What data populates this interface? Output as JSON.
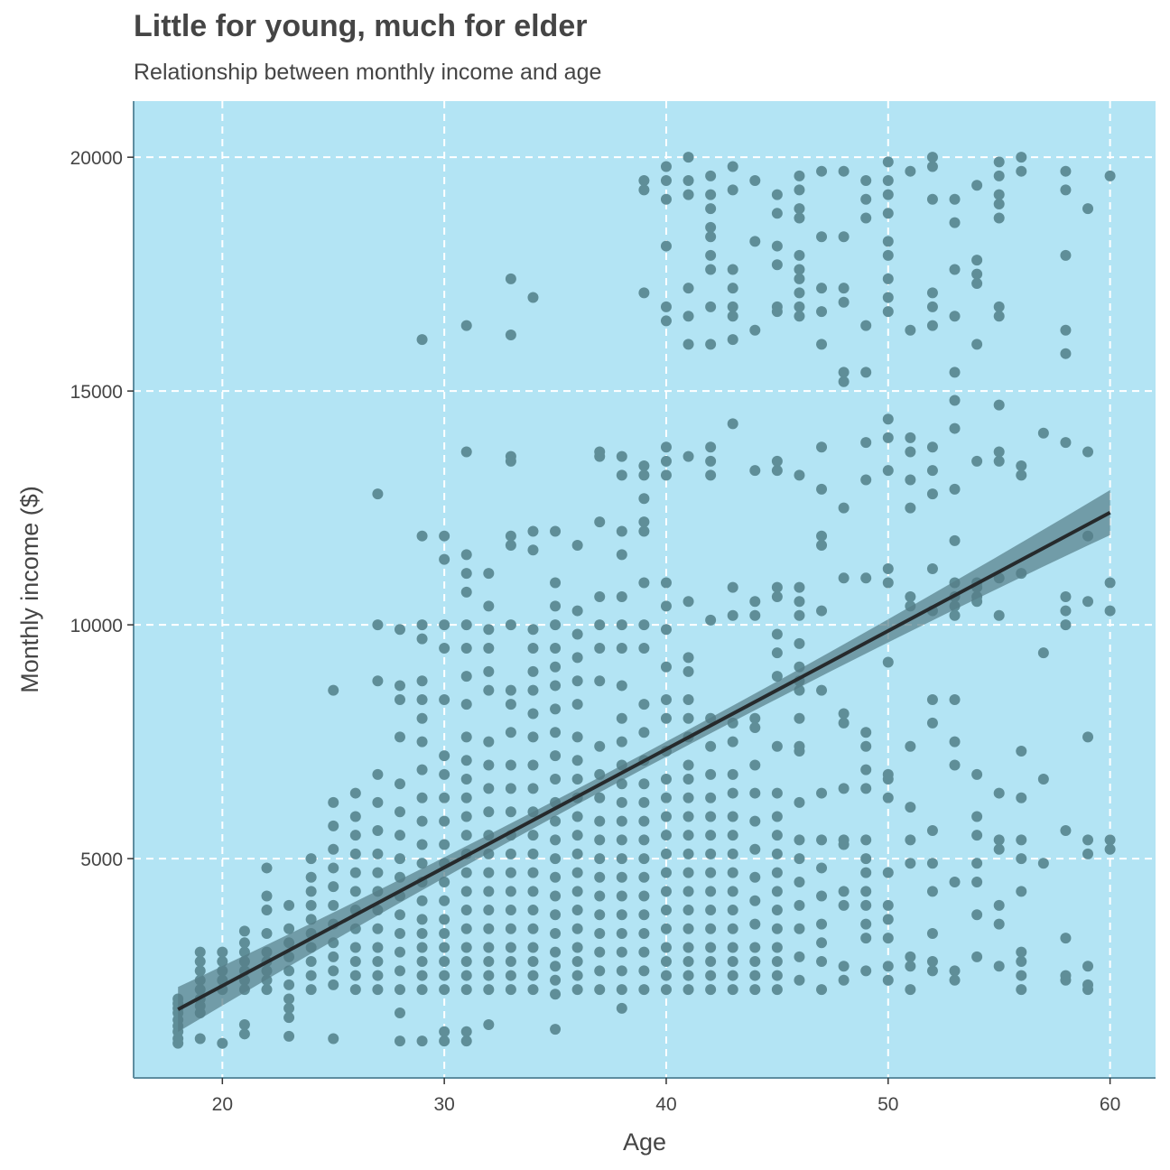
{
  "chart_data": {
    "type": "scatter",
    "title": "Little for young, much for elder",
    "subtitle": "Relationship between monthly income and age",
    "xlabel": "Age",
    "ylabel": "Monthly income ($)",
    "xlim": [
      16,
      62
    ],
    "ylim": [
      0,
      21000
    ],
    "x_ticks": [
      20,
      30,
      40,
      50,
      60
    ],
    "y_ticks": [
      5000,
      10000,
      15000,
      20000
    ],
    "grid": true,
    "colors": {
      "panel": "#b3e4f4",
      "points": "#5f8e98",
      "line": "#262a2c",
      "ribbon": "#557d88",
      "grid": "#ffffff",
      "axis": "#5e8da0"
    },
    "trend": {
      "intercept": -2780,
      "slope": 253,
      "x_range": [
        18,
        60
      ],
      "ci_halfwidth_ends": 480,
      "ci_halfwidth_mid": 160
    },
    "point_groups": [
      {
        "x": 18,
        "y": [
          1050,
          1150,
          1300,
          1420,
          1550,
          1700,
          1800,
          1900,
          2000
        ]
      },
      {
        "x": 19,
        "y": [
          1150,
          1700,
          1850,
          2000,
          2200,
          2400,
          2600,
          2800,
          3000
        ]
      },
      {
        "x": 20,
        "y": [
          1050,
          2200,
          2400,
          2600,
          2800,
          3000
        ]
      },
      {
        "x": 21,
        "y": [
          1250,
          1450,
          2200,
          2400,
          2600,
          2800,
          3000,
          3200,
          3450
        ]
      },
      {
        "x": 22,
        "y": [
          2200,
          2400,
          2600,
          2800,
          3000,
          3400,
          3900,
          4200,
          4800
        ]
      },
      {
        "x": 23,
        "y": [
          1200,
          1600,
          1800,
          2000,
          2300,
          2600,
          2900,
          3200,
          3500,
          4000
        ]
      },
      {
        "x": 24,
        "y": [
          2200,
          2500,
          2800,
          3100,
          3400,
          3700,
          4000,
          4300,
          4600,
          5000
        ]
      },
      {
        "x": 25,
        "y": [
          1150,
          2300,
          2600,
          2900,
          3200,
          3600,
          4000,
          4400,
          4800,
          5200,
          5700,
          6200,
          8600
        ]
      },
      {
        "x": 26,
        "y": [
          2200,
          2500,
          2800,
          3100,
          3500,
          3900,
          4300,
          4700,
          5100,
          5500,
          5900,
          6400
        ]
      },
      {
        "x": 27,
        "y": [
          2200,
          2500,
          2800,
          3100,
          3500,
          3900,
          4300,
          4700,
          5100,
          5600,
          6200,
          6800,
          8800,
          10000,
          12800
        ]
      },
      {
        "x": 28,
        "y": [
          1100,
          1700,
          2200,
          2600,
          3000,
          3400,
          3800,
          4200,
          4600,
          5000,
          5500,
          6000,
          6600,
          7600,
          8400,
          8700,
          9900
        ]
      },
      {
        "x": 29,
        "y": [
          1100,
          2200,
          2500,
          2800,
          3100,
          3400,
          3700,
          4100,
          4500,
          4900,
          5300,
          5800,
          6300,
          6900,
          7500,
          8000,
          8400,
          8800,
          9700,
          10000,
          11900,
          16100
        ]
      },
      {
        "x": 30,
        "y": [
          1100,
          1300,
          2200,
          2500,
          2800,
          3100,
          3400,
          3700,
          4100,
          4500,
          4900,
          5300,
          5800,
          6300,
          6800,
          7200,
          8400,
          9500,
          10000,
          11400,
          11900
        ]
      },
      {
        "x": 31,
        "y": [
          1100,
          1300,
          2200,
          2500,
          2800,
          3100,
          3500,
          3900,
          4300,
          4700,
          5100,
          5500,
          5900,
          6300,
          6700,
          7100,
          7600,
          8300,
          8900,
          9500,
          10000,
          10700,
          11100,
          11500,
          13700,
          16400
        ]
      },
      {
        "x": 32,
        "y": [
          1450,
          2200,
          2500,
          2800,
          3100,
          3500,
          3900,
          4300,
          4700,
          5100,
          5500,
          6000,
          6500,
          7000,
          7500,
          8600,
          9000,
          9500,
          9900,
          10400,
          11100
        ]
      },
      {
        "x": 33,
        "y": [
          2200,
          2500,
          2800,
          3100,
          3500,
          3900,
          4300,
          4700,
          5100,
          5500,
          6000,
          6500,
          7000,
          7700,
          8300,
          8600,
          10000,
          11700,
          11900,
          13500,
          13600,
          16200,
          17400
        ]
      },
      {
        "x": 34,
        "y": [
          2200,
          2500,
          2800,
          3100,
          3500,
          3900,
          4300,
          4700,
          5100,
          5500,
          6000,
          6500,
          7000,
          7600,
          8100,
          8600,
          9000,
          9500,
          9900,
          11600,
          12000,
          17000
        ]
      },
      {
        "x": 35,
        "y": [
          1350,
          2100,
          2400,
          2700,
          3000,
          3400,
          3800,
          4200,
          4600,
          5000,
          5400,
          5800,
          6200,
          6700,
          7200,
          7700,
          8200,
          8700,
          9100,
          9500,
          10000,
          10400,
          10900,
          12000
        ]
      },
      {
        "x": 36,
        "y": [
          2200,
          2500,
          2800,
          3100,
          3500,
          3900,
          4300,
          4700,
          5100,
          5500,
          5900,
          6300,
          6700,
          7100,
          7600,
          8300,
          8800,
          9300,
          9800,
          10300,
          11700
        ]
      },
      {
        "x": 37,
        "y": [
          2200,
          2600,
          3000,
          3400,
          3800,
          4200,
          4600,
          5000,
          5400,
          5800,
          6300,
          6800,
          7400,
          8800,
          9500,
          10000,
          10600,
          12200,
          13600,
          13700
        ]
      },
      {
        "x": 38,
        "y": [
          1800,
          2200,
          2600,
          3000,
          3400,
          3800,
          4200,
          4600,
          5000,
          5400,
          5800,
          6200,
          6600,
          7000,
          7500,
          8000,
          8700,
          9500,
          10000,
          10600,
          11500,
          12000,
          13200,
          13600
        ]
      },
      {
        "x": 39,
        "y": [
          2200,
          2600,
          3000,
          3400,
          3800,
          4200,
          4600,
          5000,
          5400,
          5800,
          6200,
          6600,
          7100,
          7700,
          8300,
          9500,
          10000,
          10900,
          12000,
          12200,
          12700,
          13200,
          13400,
          17100,
          19300,
          19500
        ]
      },
      {
        "x": 40,
        "y": [
          2200,
          2500,
          2800,
          3100,
          3500,
          3900,
          4300,
          4700,
          5100,
          5500,
          5900,
          6300,
          6700,
          7300,
          8000,
          8400,
          9100,
          9900,
          10400,
          10900,
          13200,
          13500,
          13800,
          16500,
          16800,
          18100,
          19100,
          19500,
          19800
        ]
      },
      {
        "x": 41,
        "y": [
          2200,
          2500,
          2800,
          3100,
          3500,
          3900,
          4300,
          4700,
          5100,
          5500,
          5900,
          6300,
          6700,
          7000,
          7600,
          8000,
          8400,
          9000,
          9300,
          10500,
          13600,
          16000,
          16600,
          17200,
          19200,
          19500,
          20000
        ]
      },
      {
        "x": 42,
        "y": [
          2200,
          2500,
          2800,
          3100,
          3500,
          3900,
          4300,
          4700,
          5100,
          5500,
          5900,
          6300,
          6800,
          7400,
          8000,
          10100,
          13200,
          13500,
          13800,
          16000,
          16800,
          17600,
          17900,
          18300,
          18500,
          18900,
          19200,
          19600
        ]
      },
      {
        "x": 43,
        "y": [
          2200,
          2500,
          2800,
          3100,
          3500,
          3900,
          4300,
          4700,
          5100,
          5500,
          5900,
          6400,
          6800,
          7500,
          7900,
          10200,
          10800,
          14300,
          16100,
          16600,
          16800,
          17200,
          17600,
          19300,
          19800
        ]
      },
      {
        "x": 44,
        "y": [
          2200,
          2500,
          2800,
          3100,
          3600,
          4100,
          4600,
          5200,
          5800,
          6400,
          7000,
          7800,
          8000,
          10200,
          10500,
          13300,
          16300,
          18200,
          19500
        ]
      },
      {
        "x": 45,
        "y": [
          2200,
          2500,
          2800,
          3100,
          3500,
          3900,
          4300,
          4700,
          5100,
          5500,
          5900,
          6400,
          7400,
          8900,
          9400,
          9800,
          10600,
          10800,
          13300,
          13500,
          16700,
          16800,
          17700,
          18100,
          18800,
          19200
        ]
      },
      {
        "x": 46,
        "y": [
          2400,
          2900,
          3500,
          4000,
          4500,
          5000,
          5400,
          6200,
          7300,
          7400,
          8000,
          8600,
          8800,
          9100,
          9600,
          10200,
          10500,
          10800,
          13200,
          16600,
          16800,
          17100,
          17400,
          17600,
          17900,
          18700,
          18900,
          19300,
          19600
        ]
      },
      {
        "x": 47,
        "y": [
          2200,
          2800,
          3200,
          3600,
          4200,
          4800,
          5400,
          6400,
          8600,
          10300,
          11700,
          11900,
          12900,
          13800,
          16000,
          16700,
          17200,
          18300,
          19700
        ]
      },
      {
        "x": 48,
        "y": [
          2400,
          2700,
          4000,
          4300,
          5300,
          5400,
          6500,
          7900,
          8100,
          11000,
          12500,
          15200,
          15400,
          16900,
          17200,
          18300,
          19700
        ]
      },
      {
        "x": 49,
        "y": [
          2600,
          3300,
          3600,
          4000,
          4300,
          4700,
          5000,
          5400,
          6500,
          6900,
          7400,
          7700,
          11000,
          13100,
          13900,
          15400,
          16400,
          18700,
          19100,
          19500
        ]
      },
      {
        "x": 50,
        "y": [
          2400,
          2700,
          3300,
          3700,
          4000,
          4700,
          6300,
          6700,
          6800,
          9200,
          10900,
          11200,
          13300,
          14000,
          14400,
          16700,
          17000,
          17400,
          17900,
          18200,
          18800,
          19200,
          19500,
          19900
        ]
      },
      {
        "x": 51,
        "y": [
          2200,
          2700,
          2900,
          4900,
          5400,
          6100,
          7400,
          10400,
          10600,
          12500,
          13100,
          13700,
          14000,
          16300,
          19700
        ]
      },
      {
        "x": 52,
        "y": [
          2600,
          2800,
          3400,
          4300,
          4900,
          5600,
          7900,
          8400,
          10300,
          11200,
          12800,
          13300,
          13800,
          16400,
          16800,
          17100,
          19100,
          19800,
          20000
        ]
      },
      {
        "x": 53,
        "y": [
          2400,
          2600,
          4500,
          7000,
          7500,
          8400,
          10200,
          10400,
          10600,
          10900,
          11800,
          12900,
          14200,
          14800,
          15400,
          16600,
          17600,
          18600,
          19100
        ]
      },
      {
        "x": 54,
        "y": [
          2900,
          3800,
          4500,
          4900,
          5500,
          5900,
          6800,
          10500,
          10600,
          10800,
          10900,
          13500,
          16000,
          17300,
          17500,
          17800,
          19400
        ]
      },
      {
        "x": 55,
        "y": [
          2700,
          3600,
          4000,
          5200,
          5400,
          6400,
          10200,
          11000,
          13500,
          13700,
          14700,
          16600,
          16800,
          18700,
          19000,
          19200,
          19600,
          19900
        ]
      },
      {
        "x": 56,
        "y": [
          2200,
          2500,
          2800,
          3000,
          4300,
          5000,
          5400,
          6300,
          7300,
          11100,
          13200,
          13400,
          19700,
          20000
        ]
      },
      {
        "x": 57,
        "y": [
          4900,
          6700,
          9400,
          14100
        ]
      },
      {
        "x": 58,
        "y": [
          2400,
          2500,
          3300,
          5600,
          10000,
          10300,
          10600,
          13900,
          15800,
          16300,
          17900,
          19300,
          19700
        ]
      },
      {
        "x": 59,
        "y": [
          2200,
          2300,
          2700,
          5100,
          5400,
          7600,
          10500,
          11900,
          13700,
          18900
        ]
      },
      {
        "x": 60,
        "y": [
          5200,
          5400,
          10300,
          10900,
          19600
        ]
      }
    ]
  }
}
